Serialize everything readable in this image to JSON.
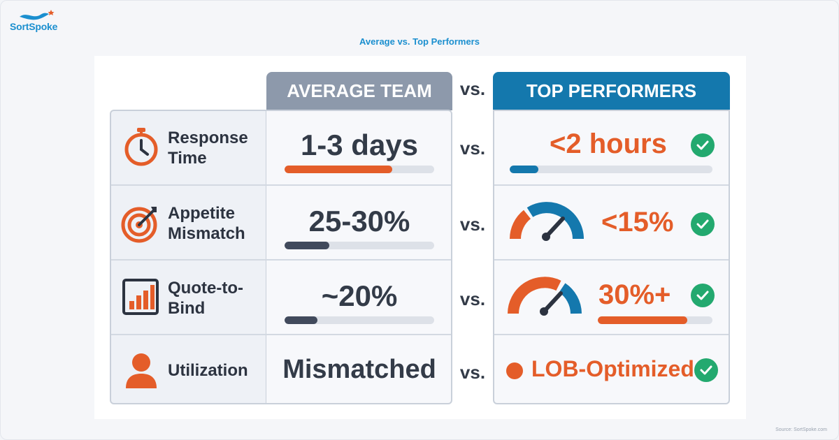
{
  "brand": {
    "name": "SortSpoke"
  },
  "title": "Average vs. Top Performers",
  "headers": {
    "average": "AVERAGE TEAM",
    "vs": "vs.",
    "top": "TOP PERFORMERS"
  },
  "colors": {
    "orange": "#e45d29",
    "blue": "#1478ad",
    "dark": "#333b48",
    "gray_header": "#8d99ab",
    "green": "#23a96f"
  },
  "rows": [
    {
      "metric": "Response Time",
      "label_lines": [
        "Response",
        "Time"
      ],
      "icon": "stopwatch-icon",
      "average": "1-3 days",
      "average_bar": 0.72,
      "average_bar_color": "#e45d29",
      "vs": "vs.",
      "top": "<2 hours",
      "top_visual": "progress-bar",
      "top_bar": 0.14,
      "top_bar_color": "#1478ad"
    },
    {
      "metric": "Appetite Mismatch",
      "label_lines": [
        "Appetite",
        "Mismatch"
      ],
      "icon": "target-icon",
      "average": "25-30%",
      "average_bar": 0.3,
      "average_bar_color": "#414a5c",
      "vs": "vs.",
      "top": "<15%",
      "top_visual": "gauge-low",
      "gauge_level": 0.2
    },
    {
      "metric": "Quote-to-Bind",
      "label_lines": [
        "Quote-to-",
        "Bind"
      ],
      "icon": "bar-chart-icon",
      "average": "~20%",
      "average_bar": 0.22,
      "average_bar_color": "#414a5c",
      "vs": "vs.",
      "top": "30%+",
      "top_visual": "gauge-high",
      "gauge_level": 0.6,
      "top_bar": 0.78,
      "top_bar_color": "#e45d29"
    },
    {
      "metric": "Utilization",
      "label_lines": [
        "Utilization"
      ],
      "icon": "person-icon",
      "average": "Mismatched",
      "vs": "vs.",
      "top": "LOB-Optimized",
      "top_visual": "dot"
    }
  ],
  "source": "Source: SortSpoke.com"
}
